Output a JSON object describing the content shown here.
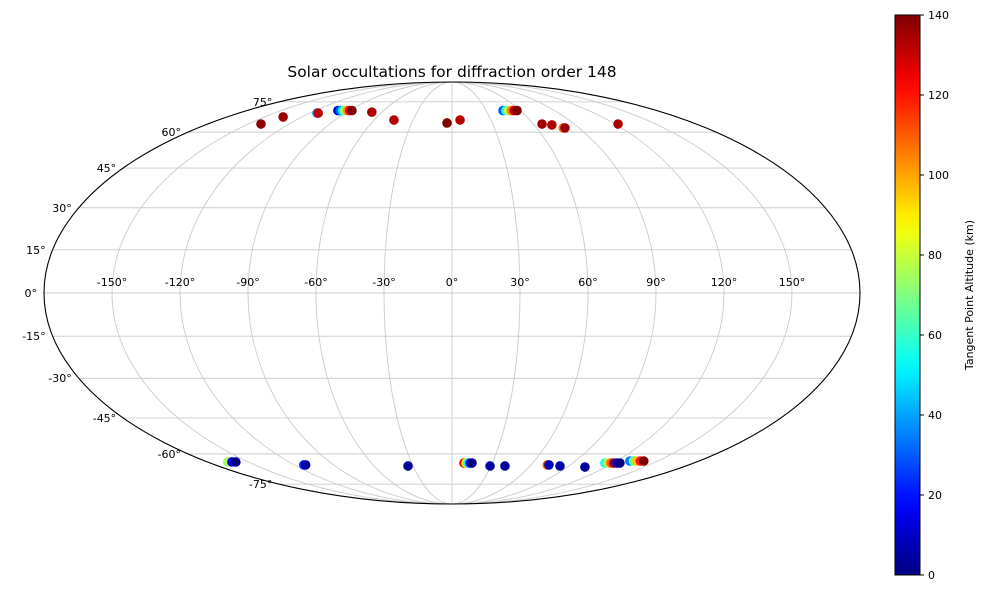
{
  "chart_data": {
    "type": "scatter",
    "projection": "mollweide",
    "title": "Solar occultations for diffraction order 148",
    "colorbar_label": "Tangent Point Altitude (km)",
    "colormap": "jet",
    "alt_range": [
      0,
      140
    ],
    "colorbar_ticks": [
      0,
      20,
      40,
      60,
      80,
      100,
      120,
      140
    ],
    "colorbar_tick_labels": [
      "0",
      "20",
      "40",
      "60",
      "80",
      "100",
      "120",
      "140"
    ],
    "lat_grid_step_deg": 15,
    "lon_grid_step_deg": 30,
    "lat_tick_labels": [
      "75°",
      "60°",
      "45°",
      "30°",
      "15°",
      "0°",
      "-15°",
      "-30°",
      "-45°",
      "-60°",
      "-75°"
    ],
    "lon_tick_labels": [
      "-150°",
      "-120°",
      "-90°",
      "-60°",
      "-30°",
      "0°",
      "30°",
      "60°",
      "90°",
      "120°",
      "150°"
    ],
    "points_format": [
      "lon_deg",
      "lat_deg",
      "altitude_km"
    ],
    "points": [
      [
        -140.7,
        63.7,
        138
      ],
      [
        -135.2,
        67.1,
        136
      ],
      [
        -114.0,
        69.0,
        40
      ],
      [
        -113.0,
        69.0,
        132
      ],
      [
        -100.2,
        70.3,
        10
      ],
      [
        -98.2,
        70.3,
        30
      ],
      [
        -96.1,
        70.3,
        50
      ],
      [
        -94.1,
        70.3,
        75
      ],
      [
        -92.0,
        70.3,
        100
      ],
      [
        -90.0,
        70.3,
        125
      ],
      [
        -87.9,
        70.3,
        140
      ],
      [
        -68.7,
        69.5,
        134
      ],
      [
        -44.7,
        65.6,
        133
      ],
      [
        -3.7,
        64.2,
        140
      ],
      [
        6.2,
        65.6,
        132
      ],
      [
        44.8,
        70.3,
        30
      ],
      [
        47.3,
        70.3,
        55
      ],
      [
        49.7,
        70.3,
        80
      ],
      [
        52.2,
        70.3,
        105
      ],
      [
        54.6,
        70.3,
        130
      ],
      [
        57.1,
        70.3,
        140
      ],
      [
        66.3,
        63.7,
        135
      ],
      [
        72.9,
        63.3,
        133
      ],
      [
        78.7,
        61.9,
        105
      ],
      [
        80.0,
        61.9,
        136
      ],
      [
        122.3,
        63.7,
        134
      ],
      [
        -165.1,
        -63.7,
        75
      ],
      [
        -162.1,
        -63.7,
        15
      ],
      [
        -159.2,
        -63.7,
        0
      ],
      [
        -112.8,
        -65.1,
        25
      ],
      [
        -111.4,
        -65.1,
        5
      ],
      [
        -33.9,
        -65.6,
        3
      ],
      [
        8.9,
        -64.2,
        125
      ],
      [
        10.4,
        -64.2,
        90
      ],
      [
        11.9,
        -64.2,
        55
      ],
      [
        13.4,
        -64.2,
        20
      ],
      [
        14.9,
        -64.2,
        0
      ],
      [
        29.3,
        -65.6,
        5
      ],
      [
        40.8,
        -65.6,
        3
      ],
      [
        72.5,
        -65.1,
        110
      ],
      [
        73.8,
        -65.1,
        8
      ],
      [
        83.2,
        -65.6,
        6
      ],
      [
        103.7,
        -66.1,
        4
      ],
      [
        113.9,
        -64.2,
        55
      ],
      [
        116.1,
        -64.2,
        80
      ],
      [
        118.4,
        -64.2,
        110
      ],
      [
        120.6,
        -64.2,
        135
      ],
      [
        122.9,
        -64.2,
        12
      ],
      [
        125.1,
        -64.2,
        0
      ],
      [
        129.8,
        -63.3,
        35
      ],
      [
        132.4,
        -63.3,
        65
      ],
      [
        134.9,
        -63.3,
        95
      ],
      [
        137.5,
        -63.3,
        120
      ],
      [
        140.0,
        -63.3,
        140
      ]
    ],
    "grid_on": true,
    "background_color": "#ffffff",
    "gridline_color": "#cccccc",
    "outline_color": "#000000"
  }
}
